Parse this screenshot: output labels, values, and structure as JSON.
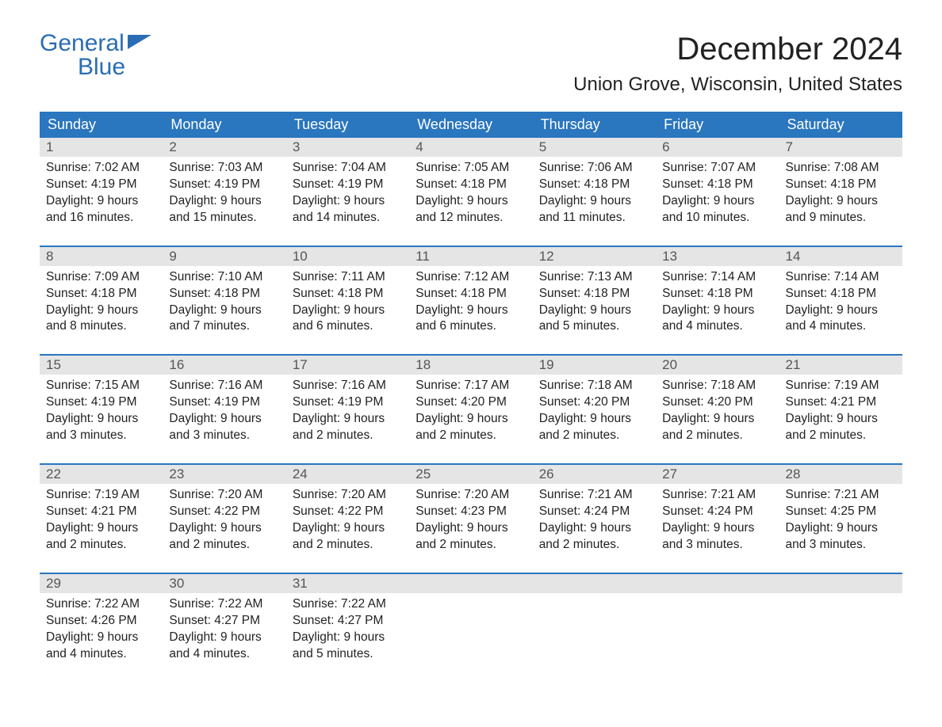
{
  "logo": {
    "line1": "General",
    "line2": "Blue"
  },
  "title": "December 2024",
  "location": "Union Grove, Wisconsin, United States",
  "day_headers": [
    "Sunday",
    "Monday",
    "Tuesday",
    "Wednesday",
    "Thursday",
    "Friday",
    "Saturday"
  ],
  "colors": {
    "header_bg": "#2a76bf",
    "header_text": "#ffffff",
    "daynum_bg": "#e5e5e5",
    "logo_color": "#2a6db5",
    "body_text": "#222222"
  },
  "weeks": [
    [
      {
        "num": "1",
        "sunrise": "Sunrise: 7:02 AM",
        "sunset": "Sunset: 4:19 PM",
        "day1": "Daylight: 9 hours",
        "day2": "and 16 minutes."
      },
      {
        "num": "2",
        "sunrise": "Sunrise: 7:03 AM",
        "sunset": "Sunset: 4:19 PM",
        "day1": "Daylight: 9 hours",
        "day2": "and 15 minutes."
      },
      {
        "num": "3",
        "sunrise": "Sunrise: 7:04 AM",
        "sunset": "Sunset: 4:19 PM",
        "day1": "Daylight: 9 hours",
        "day2": "and 14 minutes."
      },
      {
        "num": "4",
        "sunrise": "Sunrise: 7:05 AM",
        "sunset": "Sunset: 4:18 PM",
        "day1": "Daylight: 9 hours",
        "day2": "and 12 minutes."
      },
      {
        "num": "5",
        "sunrise": "Sunrise: 7:06 AM",
        "sunset": "Sunset: 4:18 PM",
        "day1": "Daylight: 9 hours",
        "day2": "and 11 minutes."
      },
      {
        "num": "6",
        "sunrise": "Sunrise: 7:07 AM",
        "sunset": "Sunset: 4:18 PM",
        "day1": "Daylight: 9 hours",
        "day2": "and 10 minutes."
      },
      {
        "num": "7",
        "sunrise": "Sunrise: 7:08 AM",
        "sunset": "Sunset: 4:18 PM",
        "day1": "Daylight: 9 hours",
        "day2": "and 9 minutes."
      }
    ],
    [
      {
        "num": "8",
        "sunrise": "Sunrise: 7:09 AM",
        "sunset": "Sunset: 4:18 PM",
        "day1": "Daylight: 9 hours",
        "day2": "and 8 minutes."
      },
      {
        "num": "9",
        "sunrise": "Sunrise: 7:10 AM",
        "sunset": "Sunset: 4:18 PM",
        "day1": "Daylight: 9 hours",
        "day2": "and 7 minutes."
      },
      {
        "num": "10",
        "sunrise": "Sunrise: 7:11 AM",
        "sunset": "Sunset: 4:18 PM",
        "day1": "Daylight: 9 hours",
        "day2": "and 6 minutes."
      },
      {
        "num": "11",
        "sunrise": "Sunrise: 7:12 AM",
        "sunset": "Sunset: 4:18 PM",
        "day1": "Daylight: 9 hours",
        "day2": "and 6 minutes."
      },
      {
        "num": "12",
        "sunrise": "Sunrise: 7:13 AM",
        "sunset": "Sunset: 4:18 PM",
        "day1": "Daylight: 9 hours",
        "day2": "and 5 minutes."
      },
      {
        "num": "13",
        "sunrise": "Sunrise: 7:14 AM",
        "sunset": "Sunset: 4:18 PM",
        "day1": "Daylight: 9 hours",
        "day2": "and 4 minutes."
      },
      {
        "num": "14",
        "sunrise": "Sunrise: 7:14 AM",
        "sunset": "Sunset: 4:18 PM",
        "day1": "Daylight: 9 hours",
        "day2": "and 4 minutes."
      }
    ],
    [
      {
        "num": "15",
        "sunrise": "Sunrise: 7:15 AM",
        "sunset": "Sunset: 4:19 PM",
        "day1": "Daylight: 9 hours",
        "day2": "and 3 minutes."
      },
      {
        "num": "16",
        "sunrise": "Sunrise: 7:16 AM",
        "sunset": "Sunset: 4:19 PM",
        "day1": "Daylight: 9 hours",
        "day2": "and 3 minutes."
      },
      {
        "num": "17",
        "sunrise": "Sunrise: 7:16 AM",
        "sunset": "Sunset: 4:19 PM",
        "day1": "Daylight: 9 hours",
        "day2": "and 2 minutes."
      },
      {
        "num": "18",
        "sunrise": "Sunrise: 7:17 AM",
        "sunset": "Sunset: 4:20 PM",
        "day1": "Daylight: 9 hours",
        "day2": "and 2 minutes."
      },
      {
        "num": "19",
        "sunrise": "Sunrise: 7:18 AM",
        "sunset": "Sunset: 4:20 PM",
        "day1": "Daylight: 9 hours",
        "day2": "and 2 minutes."
      },
      {
        "num": "20",
        "sunrise": "Sunrise: 7:18 AM",
        "sunset": "Sunset: 4:20 PM",
        "day1": "Daylight: 9 hours",
        "day2": "and 2 minutes."
      },
      {
        "num": "21",
        "sunrise": "Sunrise: 7:19 AM",
        "sunset": "Sunset: 4:21 PM",
        "day1": "Daylight: 9 hours",
        "day2": "and 2 minutes."
      }
    ],
    [
      {
        "num": "22",
        "sunrise": "Sunrise: 7:19 AM",
        "sunset": "Sunset: 4:21 PM",
        "day1": "Daylight: 9 hours",
        "day2": "and 2 minutes."
      },
      {
        "num": "23",
        "sunrise": "Sunrise: 7:20 AM",
        "sunset": "Sunset: 4:22 PM",
        "day1": "Daylight: 9 hours",
        "day2": "and 2 minutes."
      },
      {
        "num": "24",
        "sunrise": "Sunrise: 7:20 AM",
        "sunset": "Sunset: 4:22 PM",
        "day1": "Daylight: 9 hours",
        "day2": "and 2 minutes."
      },
      {
        "num": "25",
        "sunrise": "Sunrise: 7:20 AM",
        "sunset": "Sunset: 4:23 PM",
        "day1": "Daylight: 9 hours",
        "day2": "and 2 minutes."
      },
      {
        "num": "26",
        "sunrise": "Sunrise: 7:21 AM",
        "sunset": "Sunset: 4:24 PM",
        "day1": "Daylight: 9 hours",
        "day2": "and 2 minutes."
      },
      {
        "num": "27",
        "sunrise": "Sunrise: 7:21 AM",
        "sunset": "Sunset: 4:24 PM",
        "day1": "Daylight: 9 hours",
        "day2": "and 3 minutes."
      },
      {
        "num": "28",
        "sunrise": "Sunrise: 7:21 AM",
        "sunset": "Sunset: 4:25 PM",
        "day1": "Daylight: 9 hours",
        "day2": "and 3 minutes."
      }
    ],
    [
      {
        "num": "29",
        "sunrise": "Sunrise: 7:22 AM",
        "sunset": "Sunset: 4:26 PM",
        "day1": "Daylight: 9 hours",
        "day2": "and 4 minutes."
      },
      {
        "num": "30",
        "sunrise": "Sunrise: 7:22 AM",
        "sunset": "Sunset: 4:27 PM",
        "day1": "Daylight: 9 hours",
        "day2": "and 4 minutes."
      },
      {
        "num": "31",
        "sunrise": "Sunrise: 7:22 AM",
        "sunset": "Sunset: 4:27 PM",
        "day1": "Daylight: 9 hours",
        "day2": "and 5 minutes."
      },
      null,
      null,
      null,
      null
    ]
  ]
}
